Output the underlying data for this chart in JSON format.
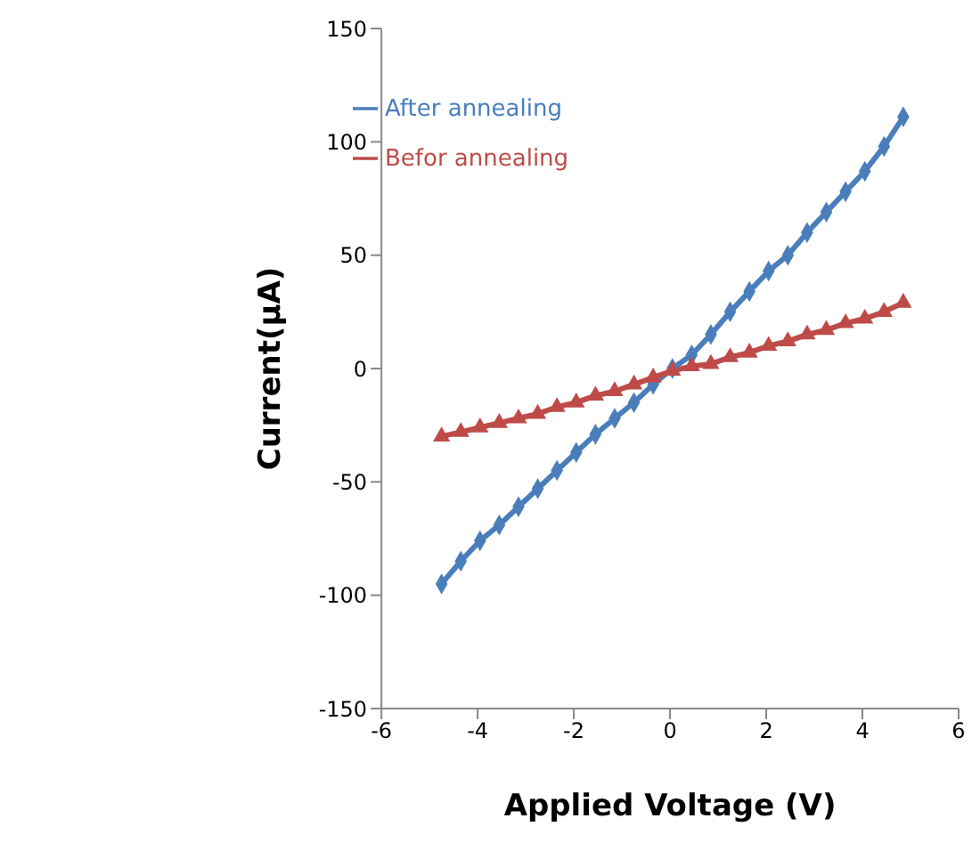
{
  "chart_data": {
    "type": "line",
    "xlabel": "Applied Voltage (V)",
    "ylabel": "Current(μA)",
    "x": [
      -4.75,
      -4.35,
      -3.95,
      -3.55,
      -3.15,
      -2.75,
      -2.35,
      -1.95,
      -1.55,
      -1.15,
      -0.75,
      -0.35,
      0.05,
      0.45,
      0.85,
      1.25,
      1.65,
      2.05,
      2.45,
      2.85,
      3.25,
      3.65,
      4.05,
      4.45,
      4.85
    ],
    "series": [
      {
        "name": "After annealing",
        "color": "#4a7ebb",
        "marker": "diamond",
        "values": [
          -95,
          -85,
          -76,
          -69,
          -61,
          -53,
          -45,
          -37,
          -29,
          -22,
          -15,
          -7,
          0,
          6,
          15,
          25,
          34,
          43,
          50,
          60,
          69,
          78,
          87,
          98,
          111
        ]
      },
      {
        "name": "Befor annealing",
        "color": "#be4b48",
        "marker": "triangle",
        "values": [
          -30,
          -28,
          -26,
          -24,
          -22,
          -20,
          -17,
          -15,
          -12,
          -10,
          -7,
          -4,
          -1,
          1,
          2,
          5,
          7,
          10,
          12,
          15,
          17,
          20,
          22,
          25,
          29
        ]
      }
    ],
    "xlim": [
      -6,
      6
    ],
    "xticks": [
      -6,
      -4,
      -2,
      0,
      2,
      4,
      6
    ],
    "ylim": [
      -150,
      150
    ],
    "yticks": [
      -150,
      -100,
      -50,
      0,
      50,
      100,
      150
    ],
    "legend": "top left",
    "line_style": "solid"
  }
}
